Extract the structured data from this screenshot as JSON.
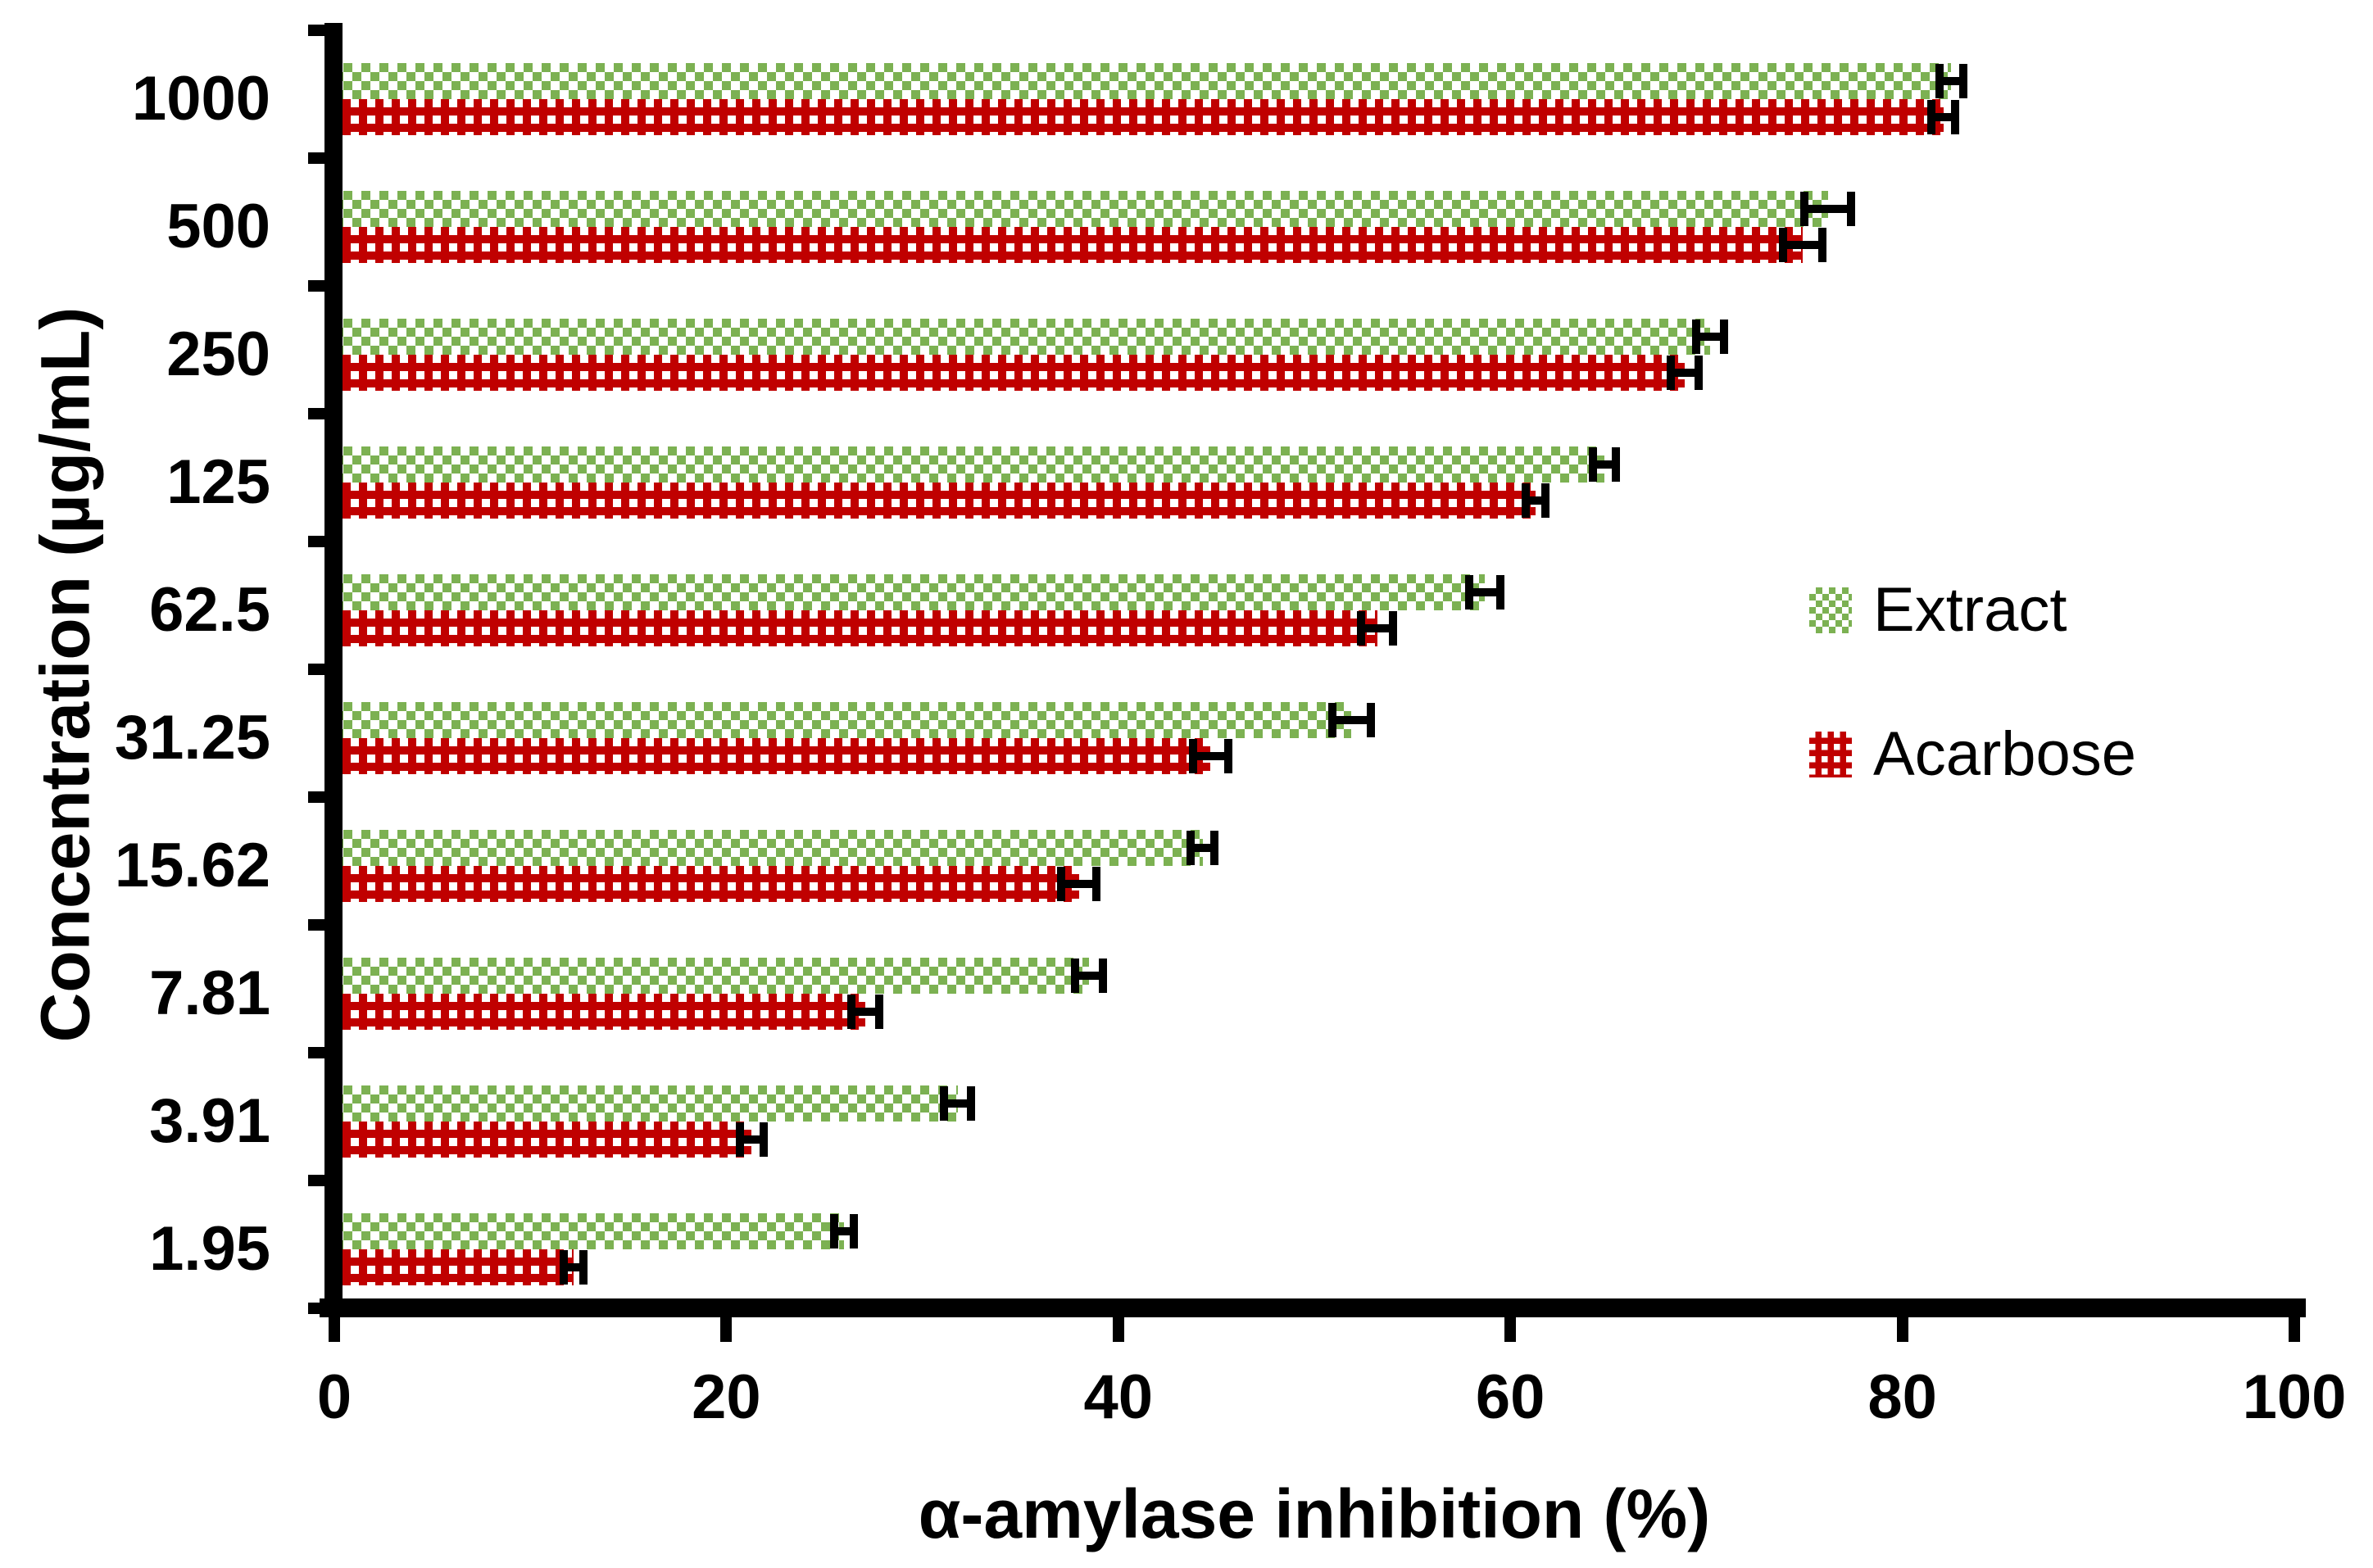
{
  "chart_data": {
    "type": "bar",
    "orientation": "horizontal",
    "title": "",
    "xlabel": "α-amylase inhibition (%)",
    "ylabel": "Concentration (µg/mL)",
    "xlim": [
      0,
      100
    ],
    "xticks": [
      0,
      20,
      40,
      60,
      80,
      100
    ],
    "grid": false,
    "legend_position": "center-right",
    "error_bars": true,
    "categories": [
      "1000",
      "500",
      "250",
      "125",
      "62.5",
      "31.25",
      "15.62",
      "7.81",
      "3.91",
      "1.95"
    ],
    "series": [
      {
        "name": "Extract",
        "color": "#7CB152",
        "pattern": "green-checkerboard",
        "values": [
          82.5,
          76.2,
          70.2,
          64.8,
          58.7,
          51.9,
          44.3,
          38.5,
          31.8,
          26.0
        ],
        "errors": [
          0.6,
          1.2,
          0.7,
          0.6,
          0.8,
          1.0,
          0.6,
          0.7,
          0.7,
          0.5
        ]
      },
      {
        "name": "Acarbose",
        "color": "#C00000",
        "pattern": "red-white-dots",
        "values": [
          82.1,
          74.9,
          68.9,
          61.3,
          53.2,
          44.7,
          38.0,
          27.1,
          21.3,
          12.2
        ],
        "errors": [
          0.6,
          1.0,
          0.7,
          0.5,
          0.8,
          0.9,
          0.9,
          0.7,
          0.6,
          0.5
        ]
      }
    ],
    "error_bar_color": "#000000",
    "axis_color": "#000000"
  }
}
